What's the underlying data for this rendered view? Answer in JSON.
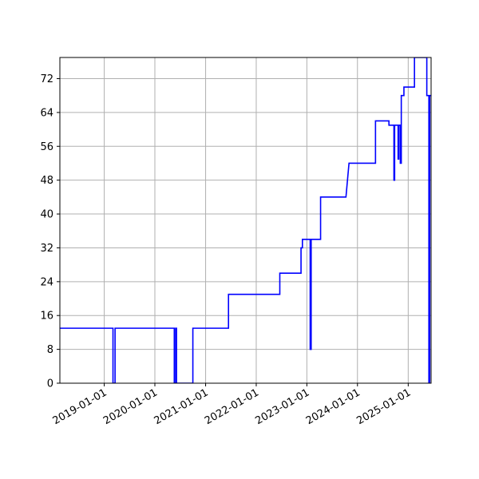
{
  "chart_data": {
    "type": "line",
    "title": "",
    "xlabel": "",
    "ylabel": "",
    "x_axis": "date",
    "xlim": [
      "2018-02-15",
      "2025-06-15"
    ],
    "ylim": [
      0,
      77
    ],
    "grid": true,
    "x_ticks": [
      "2019-01-01",
      "2020-01-01",
      "2021-01-01",
      "2022-01-01",
      "2023-01-01",
      "2024-01-01",
      "2025-01-01"
    ],
    "y_ticks": [
      0,
      8,
      16,
      24,
      32,
      40,
      48,
      56,
      64,
      72
    ],
    "colors": {
      "line": "#0000ff",
      "grid": "#b0b0b0",
      "axes": "#000000"
    },
    "series": [
      {
        "step": true,
        "points": [
          [
            "2018-02-15",
            13
          ],
          [
            "2019-03-05",
            13
          ],
          [
            "2019-03-05",
            0
          ],
          [
            "2019-03-20",
            0
          ],
          [
            "2019-03-20",
            13
          ],
          [
            "2020-05-20",
            13
          ],
          [
            "2020-05-20",
            0
          ],
          [
            "2020-05-30",
            0
          ],
          [
            "2020-05-30",
            13
          ],
          [
            "2020-06-05",
            13
          ],
          [
            "2020-06-05",
            0
          ],
          [
            "2020-10-01",
            0
          ],
          [
            "2020-10-01",
            13
          ],
          [
            "2021-06-15",
            13
          ],
          [
            "2021-06-15",
            21
          ],
          [
            "2022-06-20",
            21
          ],
          [
            "2022-06-20",
            26
          ],
          [
            "2022-11-20",
            26
          ],
          [
            "2022-11-20",
            32
          ],
          [
            "2022-11-30",
            32
          ],
          [
            "2022-11-30",
            34
          ],
          [
            "2023-01-25",
            34
          ],
          [
            "2023-01-25",
            8
          ],
          [
            "2023-02-01",
            8
          ],
          [
            "2023-02-01",
            34
          ],
          [
            "2023-04-10",
            34
          ],
          [
            "2023-04-10",
            44
          ],
          [
            "2023-10-10",
            44
          ],
          [
            "2023-11-01",
            52
          ],
          [
            "2024-05-10",
            52
          ],
          [
            "2024-05-10",
            62
          ],
          [
            "2024-08-15",
            62
          ],
          [
            "2024-08-15",
            61
          ],
          [
            "2024-09-20",
            61
          ],
          [
            "2024-09-20",
            48
          ],
          [
            "2024-09-25",
            48
          ],
          [
            "2024-09-25",
            61
          ],
          [
            "2024-10-20",
            61
          ],
          [
            "2024-10-20",
            53
          ],
          [
            "2024-10-25",
            53
          ],
          [
            "2024-10-25",
            61
          ],
          [
            "2024-11-05",
            61
          ],
          [
            "2024-11-05",
            52
          ],
          [
            "2024-11-12",
            52
          ],
          [
            "2024-11-12",
            68
          ],
          [
            "2024-12-01",
            68
          ],
          [
            "2024-12-01",
            70
          ],
          [
            "2025-02-15",
            70
          ],
          [
            "2025-02-15",
            77
          ],
          [
            "2025-05-15",
            77
          ],
          [
            "2025-05-15",
            68
          ],
          [
            "2025-05-30",
            68
          ],
          [
            "2025-05-30",
            0
          ],
          [
            "2025-06-05",
            0
          ],
          [
            "2025-06-05",
            68
          ],
          [
            "2025-06-15",
            68
          ]
        ]
      }
    ]
  }
}
